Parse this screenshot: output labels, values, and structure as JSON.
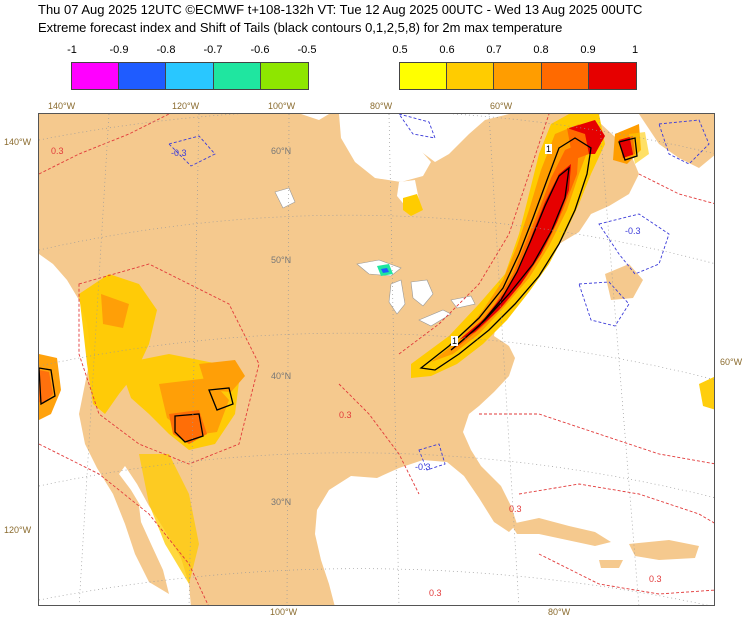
{
  "title_line1": "Thu 07 Aug 2025 12UTC ©ECMWF t+108-132h  VT: Tue 12 Aug 2025 00UTC - Wed 13 Aug 2025 00UTC",
  "title_line2": "Extreme forecast index and Shift of Tails (black contours 0,1,2,5,8) for 2m max temperature",
  "colorbar_negative": {
    "ticks": [
      "-1",
      "-0.9",
      "-0.8",
      "-0.7",
      "-0.6",
      "-0.5"
    ],
    "colors": [
      "#ff00ff",
      "#1f5cff",
      "#29c7ff",
      "#1fe6a0",
      "#8ee600"
    ]
  },
  "colorbar_positive": {
    "ticks": [
      "0.5",
      "0.6",
      "0.7",
      "0.8",
      "0.9",
      "1"
    ],
    "colors": [
      "#ffff00",
      "#ffcc00",
      "#ff9d00",
      "#ff6a00",
      "#e60000"
    ]
  },
  "map": {
    "land_color": "#f5c98e",
    "ocean_color": "#ffffff",
    "top_lon_labels": [
      "140°W",
      "120°W",
      "100°W",
      "80°W",
      "60°W"
    ],
    "bottom_lon_labels": [
      "100°W",
      "80°W"
    ],
    "left_labels": [
      "140°W",
      "120°W"
    ],
    "right_labels": [
      "60°W"
    ],
    "lat_labels": [
      "60°N",
      "50°N",
      "40°N",
      "30°N"
    ],
    "contour_labels": [
      "-0.3",
      "-0.3",
      "-0.3",
      "0.3",
      "0.3",
      "0.3",
      "0.3",
      "0.3"
    ],
    "shift_of_tails_labels": [
      "1",
      "1"
    ]
  }
}
